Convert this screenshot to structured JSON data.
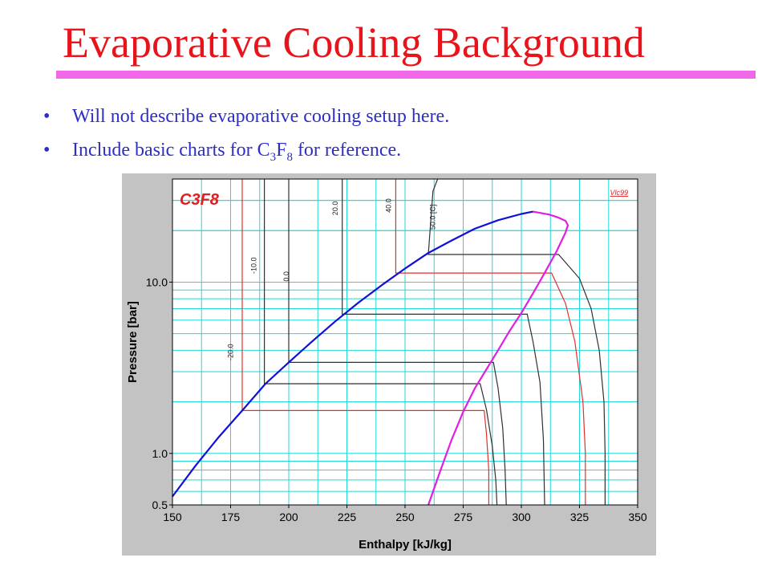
{
  "slide": {
    "title": "Evaporative Cooling Background",
    "bullets": [
      {
        "text": "Will not describe evaporative cooling setup here."
      },
      {
        "before": "Include basic charts for C",
        "sub1": "3",
        "mid": "F",
        "sub2": "8",
        "after": " for reference."
      }
    ]
  },
  "colors": {
    "title": "#e8141b",
    "rule": "#f067e8",
    "bullet_text": "#2d2dc8",
    "saturated_liquid": "#1010d8",
    "saturated_vapor": "#e020e0",
    "grid": "#22d8d8",
    "isotherm_red": "#e03030",
    "isotherm_black": "#303030"
  },
  "chart_data": {
    "type": "line",
    "title": "C3F8",
    "watermark": "Vlc99",
    "xlabel": "Enthalpy [kJ/kg]",
    "ylabel": "Pressure [bar]",
    "xlim": [
      150,
      350
    ],
    "ylim": [
      0.5,
      40
    ],
    "yscale": "log",
    "grid": true,
    "x_ticks": [
      "150",
      "175",
      "200",
      "225",
      "250",
      "275",
      "300",
      "325",
      "350"
    ],
    "y_ticks": [
      {
        "label": "0.5",
        "value": 0.5
      },
      {
        "label": "1.0",
        "value": 1.0
      },
      {
        "label": "10.0",
        "value": 10.0
      }
    ],
    "series": [
      {
        "key": "saturated_liquid",
        "points": [
          [
            150,
            0.56
          ],
          [
            160,
            0.85
          ],
          [
            170,
            1.25
          ],
          [
            180,
            1.78
          ],
          [
            190,
            2.55
          ],
          [
            200,
            3.4
          ],
          [
            210,
            4.5
          ],
          [
            220,
            5.9
          ],
          [
            230,
            7.6
          ],
          [
            240,
            9.6
          ],
          [
            250,
            12.0
          ],
          [
            260,
            14.8
          ],
          [
            270,
            17.5
          ],
          [
            280,
            20.5
          ],
          [
            290,
            23.0
          ],
          [
            300,
            25.0
          ],
          [
            305,
            25.8
          ]
        ]
      },
      {
        "key": "saturated_vapor",
        "points": [
          [
            260,
            0.5
          ],
          [
            265,
            0.78
          ],
          [
            270,
            1.2
          ],
          [
            275,
            1.75
          ],
          [
            280,
            2.4
          ],
          [
            285,
            3.1
          ],
          [
            290,
            4.0
          ],
          [
            295,
            5.2
          ],
          [
            300,
            6.6
          ],
          [
            305,
            8.6
          ],
          [
            310,
            11.3
          ],
          [
            315,
            15.0
          ],
          [
            319,
            19.5
          ],
          [
            320,
            21.5
          ],
          [
            319,
            22.8
          ],
          [
            316,
            23.8
          ],
          [
            312,
            24.8
          ],
          [
            305,
            25.8
          ]
        ]
      }
    ],
    "isotherms": [
      {
        "label": "-20.0",
        "color": "red",
        "label_at": [
          176,
          3.9
        ],
        "points": [
          [
            180,
            40
          ],
          [
            180,
            1.78
          ],
          [
            284,
            1.78
          ],
          [
            285,
            1.3
          ],
          [
            286,
            0.8
          ],
          [
            286,
            0.5
          ]
        ]
      },
      {
        "label": "-10.0",
        "color": "black",
        "label_at": [
          186,
          12.5
        ],
        "points": [
          [
            189.5,
            40
          ],
          [
            189.5,
            2.55
          ],
          [
            282.3,
            2.55
          ],
          [
            285,
            1.8
          ],
          [
            287.5,
            1.1
          ],
          [
            289,
            0.7
          ],
          [
            289.5,
            0.5
          ]
        ]
      },
      {
        "label": "0.0",
        "color": "black",
        "label_at": [
          200,
          10.8
        ],
        "points": [
          [
            200,
            40
          ],
          [
            200,
            3.4
          ],
          [
            288,
            3.4
          ],
          [
            290,
            2.4
          ],
          [
            292,
            1.4
          ],
          [
            293,
            0.8
          ],
          [
            293.5,
            0.5
          ]
        ]
      },
      {
        "label": "20.0",
        "color": "black",
        "label_at": [
          221,
          27
        ],
        "points": [
          [
            223,
            40
          ],
          [
            223,
            6.5
          ],
          [
            302.5,
            6.5
          ],
          [
            305,
            4.5
          ],
          [
            308,
            2.6
          ],
          [
            309.5,
            1.2
          ],
          [
            310,
            0.5
          ]
        ]
      },
      {
        "label": "40.0",
        "color": "red",
        "label_at": [
          244,
          28
        ],
        "points": [
          [
            246,
            40
          ],
          [
            246,
            11.3
          ],
          [
            313,
            11.3
          ],
          [
            319,
            7.5
          ],
          [
            323,
            4.5
          ],
          [
            326.5,
            2.0
          ],
          [
            327.5,
            1.0
          ],
          [
            327.5,
            0.5
          ]
        ]
      },
      {
        "label": "50.0 [C]",
        "color": "black",
        "label_at": [
          263,
          24
        ],
        "points": [
          [
            264,
            40
          ],
          [
            262,
            34
          ],
          [
            260,
            14.5
          ],
          [
            316,
            14.5
          ],
          [
            325,
            10.5
          ],
          [
            330,
            7.0
          ],
          [
            333.5,
            4.0
          ],
          [
            335.5,
            2.0
          ],
          [
            336,
            1.0
          ],
          [
            336,
            0.5
          ]
        ]
      }
    ]
  }
}
